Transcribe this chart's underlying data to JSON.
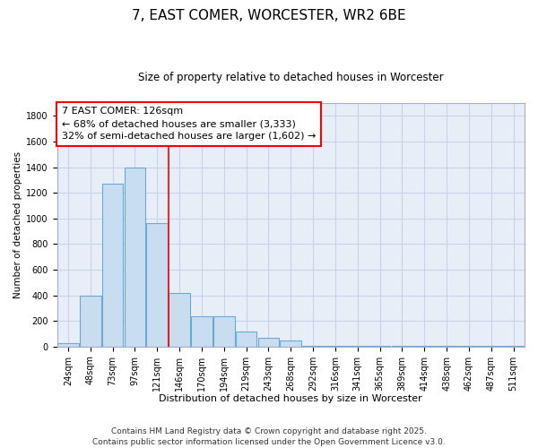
{
  "title1": "7, EAST COMER, WORCESTER, WR2 6BE",
  "title2": "Size of property relative to detached houses in Worcester",
  "xlabel": "Distribution of detached houses by size in Worcester",
  "ylabel": "Number of detached properties",
  "bar_labels": [
    "24sqm",
    "48sqm",
    "73sqm",
    "97sqm",
    "121sqm",
    "146sqm",
    "170sqm",
    "194sqm",
    "219sqm",
    "243sqm",
    "268sqm",
    "292sqm",
    "316sqm",
    "341sqm",
    "365sqm",
    "389sqm",
    "414sqm",
    "438sqm",
    "462sqm",
    "487sqm",
    "511sqm"
  ],
  "bar_values": [
    25,
    400,
    1270,
    1400,
    960,
    420,
    235,
    235,
    115,
    70,
    45,
    5,
    5,
    5,
    5,
    5,
    5,
    5,
    5,
    5,
    5
  ],
  "bar_color": "#c9ddf0",
  "bar_edge_color": "#6aaad4",
  "bar_edge_width": 0.8,
  "red_line_x": 4.5,
  "annotation_text": "7 EAST COMER: 126sqm\n← 68% of detached houses are smaller (3,333)\n32% of semi-detached houses are larger (1,602) →",
  "annotation_box_color": "white",
  "annotation_box_edge_color": "red",
  "annotation_fontsize": 8,
  "ylim": [
    0,
    1900
  ],
  "yticks": [
    0,
    200,
    400,
    600,
    800,
    1000,
    1200,
    1400,
    1600,
    1800
  ],
  "grid_color": "#c8d4e8",
  "background_color": "#e8eef8",
  "footer1": "Contains HM Land Registry data © Crown copyright and database right 2025.",
  "footer2": "Contains public sector information licensed under the Open Government Licence v3.0.",
  "title1_fontsize": 11,
  "title2_fontsize": 8.5,
  "xlabel_fontsize": 8,
  "ylabel_fontsize": 7.5,
  "tick_fontsize": 7,
  "footer_fontsize": 6.5
}
